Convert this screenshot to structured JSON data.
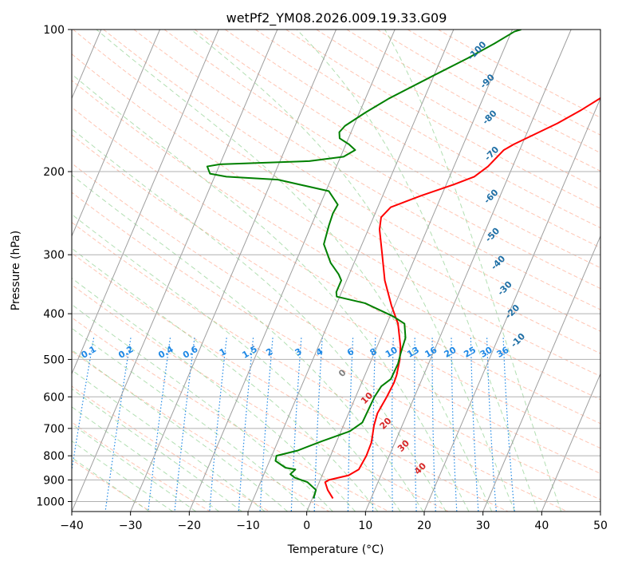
{
  "chart_data": {
    "type": "line",
    "title": "wetPf2_YM08.2026.009.19.33.G09",
    "xlabel": "Temperature (°C)",
    "ylabel": "Pressure (hPa)",
    "xlim": [
      -40,
      50
    ],
    "ylim": [
      1050,
      100
    ],
    "y_scale": "log",
    "grid": true,
    "x_ticks": [
      -40,
      -30,
      -20,
      -10,
      0,
      10,
      20,
      30,
      40,
      50
    ],
    "y_ticks": [
      100,
      200,
      300,
      400,
      500,
      600,
      700,
      800,
      900,
      1000
    ],
    "series": [
      {
        "role": "temperature",
        "color": "#ff0000",
        "points": [
          [
            3.5,
            985
          ],
          [
            2.0,
            945
          ],
          [
            1.0,
            910
          ],
          [
            1.5,
            900
          ],
          [
            4.5,
            880
          ],
          [
            5.8,
            855
          ],
          [
            6.1,
            800
          ],
          [
            6.0,
            750
          ],
          [
            5.2,
            690
          ],
          [
            4.9,
            650
          ],
          [
            5.3,
            600
          ],
          [
            5.5,
            560
          ],
          [
            5.4,
            540
          ],
          [
            4.8,
            500
          ],
          [
            4.0,
            470
          ],
          [
            1.9,
            420
          ],
          [
            -0.5,
            385
          ],
          [
            -3.5,
            340
          ],
          [
            -5.8,
            300
          ],
          [
            -8.1,
            265
          ],
          [
            -8.7,
            250
          ],
          [
            -7.8,
            238
          ],
          [
            -3.5,
            225
          ],
          [
            1.3,
            213
          ],
          [
            4.2,
            205
          ],
          [
            5.8,
            195
          ],
          [
            7.3,
            180
          ],
          [
            8.6,
            175
          ],
          [
            14.5,
            158
          ],
          [
            17.6,
            148
          ],
          [
            20.5,
            138
          ],
          [
            22.4,
            130
          ],
          [
            24.5,
            122
          ],
          [
            26.0,
            116
          ],
          [
            29.8,
            107
          ],
          [
            31.5,
            103
          ],
          [
            32.3,
            100
          ]
        ]
      },
      {
        "role": "dewpoint",
        "color": "#008000",
        "points": [
          [
            0.2,
            985
          ],
          [
            0.0,
            945
          ],
          [
            -2.0,
            910
          ],
          [
            -4.5,
            890
          ],
          [
            -5.5,
            875
          ],
          [
            -5.0,
            855
          ],
          [
            -6.8,
            848
          ],
          [
            -9.0,
            820
          ],
          [
            -9.2,
            800
          ],
          [
            -6.0,
            780
          ],
          [
            -2.5,
            745
          ],
          [
            1.5,
            710
          ],
          [
            3.0,
            680
          ],
          [
            3.1,
            640
          ],
          [
            3.2,
            600
          ],
          [
            3.6,
            570
          ],
          [
            4.7,
            550
          ],
          [
            4.8,
            510
          ],
          [
            4.5,
            485
          ],
          [
            4.2,
            450
          ],
          [
            3.0,
            420
          ],
          [
            0.5,
            405
          ],
          [
            -5.2,
            380
          ],
          [
            -10.5,
            368
          ],
          [
            -10.9,
            360
          ],
          [
            -10.9,
            340
          ],
          [
            -11.8,
            330
          ],
          [
            -14.0,
            312
          ],
          [
            -16.5,
            285
          ],
          [
            -17.0,
            260
          ],
          [
            -17.2,
            245
          ],
          [
            -17.0,
            235
          ],
          [
            -19.5,
            220
          ],
          [
            -29.0,
            208
          ],
          [
            -38.0,
            205
          ],
          [
            -41.0,
            202
          ],
          [
            -42.0,
            195
          ],
          [
            -40.0,
            193
          ],
          [
            -25.0,
            190
          ],
          [
            -19.5,
            186
          ],
          [
            -18.0,
            180
          ],
          [
            -19.5,
            175
          ],
          [
            -21.5,
            170
          ],
          [
            -22.0,
            165
          ],
          [
            -21.5,
            160
          ],
          [
            -19.0,
            150
          ],
          [
            -16.0,
            140
          ],
          [
            -10.0,
            125
          ],
          [
            -5.5,
            115
          ],
          [
            -2.0,
            107
          ],
          [
            0.5,
            101
          ],
          [
            1.5,
            100
          ]
        ]
      }
    ],
    "dry_adiabat_labels": [
      "-100",
      "-90",
      "-80",
      "-70",
      "-60",
      "-50",
      "-40",
      "-30",
      "-20",
      "-10"
    ],
    "mixing_ratio_labels": [
      "0.1",
      "0.2",
      "0.4",
      "0.6",
      "1",
      "1.5",
      "2",
      "3",
      "4",
      "6",
      "8",
      "10",
      "13",
      "16",
      "20",
      "25",
      "30",
      "36"
    ],
    "moist_adiabat_labels": [
      "0",
      "10",
      "20",
      "30",
      "40"
    ],
    "colors": {
      "temperature": "#ff0000",
      "dewpoint": "#008000",
      "isotherm": "#9e9e9e",
      "isobar": "#b0b0b0",
      "dry_adiabat": "#ff9f80",
      "moist_adiabat": "#7ec97e",
      "mixing_ratio": "#1e88e5",
      "dry_label": "#1f6fa5",
      "moist_label": "#d62728",
      "zero_moist_label": "#808080"
    }
  }
}
